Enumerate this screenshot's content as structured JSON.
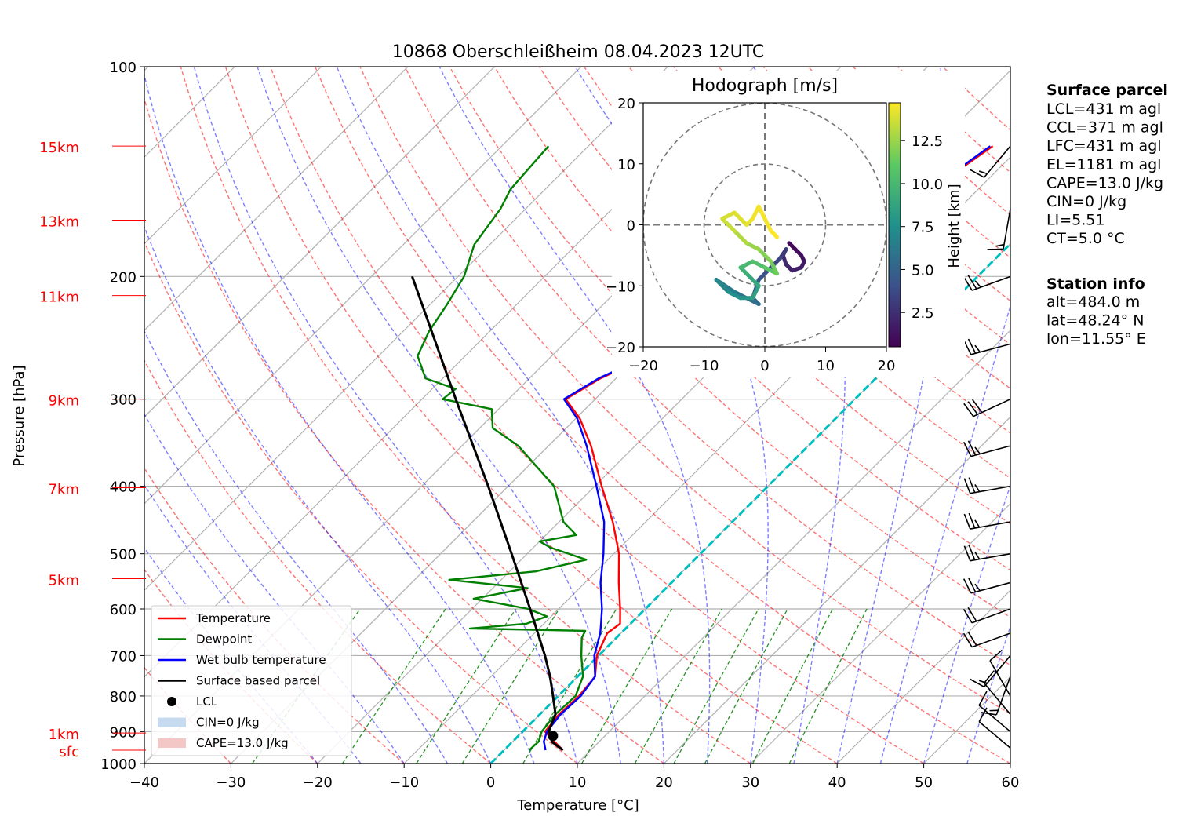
{
  "chart_data": {
    "type": "skew-t",
    "title": "10868 Oberschleißheim 08.04.2023 12UTC",
    "xlabel": "Temperature [°C]",
    "ylabel": "Pressure [hPa]",
    "xlim": [
      -40,
      60
    ],
    "ylim": [
      1000,
      100
    ],
    "log_pressure_axis": true,
    "grid": true,
    "x_ticks": [
      "−40",
      "−30",
      "−20",
      "−10",
      "0",
      "10",
      "20",
      "30",
      "40",
      "50",
      "60"
    ],
    "y_ticks": [
      "100",
      "200",
      "300",
      "400",
      "500",
      "600",
      "700",
      "800",
      "900",
      "1000"
    ],
    "height_labels": [
      {
        "text": "15km",
        "p": 130
      },
      {
        "text": "13km",
        "p": 166
      },
      {
        "text": "11km",
        "p": 213
      },
      {
        "text": "9km",
        "p": 300
      },
      {
        "text": "7km",
        "p": 402
      },
      {
        "text": "5km",
        "p": 543
      },
      {
        "text": "1km",
        "p": 904
      },
      {
        "text": "sfc",
        "p": 957
      }
    ],
    "legend": [
      {
        "label": "Temperature",
        "color": "#ff0000",
        "kind": "line"
      },
      {
        "label": "Dewpoint",
        "color": "#008000",
        "kind": "line"
      },
      {
        "label": "Wet bulb temperature",
        "color": "#0000ff",
        "kind": "line"
      },
      {
        "label": "Surface based parcel",
        "color": "#000000",
        "kind": "line"
      },
      {
        "label": "LCL",
        "color": "#000000",
        "kind": "dot"
      },
      {
        "label": "CIN=0 J/kg",
        "color": "#c6dbef",
        "kind": "patch"
      },
      {
        "label": "CAPE=13.0 J/kg",
        "color": "#f4c7c7",
        "kind": "patch"
      }
    ],
    "legend_placement": "lower-left",
    "series": [
      {
        "name": "Temperature",
        "color": "#ff0000",
        "points": [
          [
            957,
            6.8
          ],
          [
            930,
            4.8
          ],
          [
            900,
            2.6
          ],
          [
            850,
            2.2
          ],
          [
            800,
            2.4
          ],
          [
            750,
            2.0
          ],
          [
            700,
            -0.2
          ],
          [
            650,
            -1.6
          ],
          [
            630,
            -1.2
          ],
          [
            600,
            -2.9
          ],
          [
            550,
            -6.1
          ],
          [
            500,
            -9.4
          ],
          [
            450,
            -13.8
          ],
          [
            400,
            -19.2
          ],
          [
            350,
            -25.1
          ],
          [
            320,
            -29.5
          ],
          [
            300,
            -33.4
          ],
          [
            280,
            -31.8
          ],
          [
            260,
            -28.7
          ],
          [
            240,
            -25.0
          ],
          [
            220,
            -24.2
          ],
          [
            200,
            -22.0
          ],
          [
            180,
            -21.6
          ],
          [
            165,
            -19.5
          ],
          [
            150,
            -17.6
          ],
          [
            140,
            -14.4
          ],
          [
            130,
            -13.3
          ]
        ]
      },
      {
        "name": "Wet bulb temperature",
        "color": "#0000ff",
        "points": [
          [
            957,
            4.8
          ],
          [
            930,
            3.6
          ],
          [
            900,
            2.8
          ],
          [
            850,
            2.4
          ],
          [
            800,
            2.6
          ],
          [
            750,
            2.0
          ],
          [
            700,
            -0.5
          ],
          [
            650,
            -2.4
          ],
          [
            630,
            -3.4
          ],
          [
            600,
            -5.0
          ],
          [
            550,
            -8.2
          ],
          [
            500,
            -11.2
          ],
          [
            450,
            -14.8
          ],
          [
            400,
            -19.8
          ],
          [
            350,
            -25.6
          ],
          [
            320,
            -29.8
          ],
          [
            300,
            -33.6
          ],
          [
            280,
            -32.0
          ],
          [
            260,
            -28.9
          ],
          [
            240,
            -25.2
          ],
          [
            220,
            -24.4
          ],
          [
            200,
            -22.4
          ],
          [
            180,
            -21.8
          ],
          [
            165,
            -19.8
          ],
          [
            150,
            -17.9
          ],
          [
            140,
            -14.6
          ],
          [
            130,
            -13.6
          ]
        ]
      },
      {
        "name": "Dewpoint",
        "color": "#008000",
        "points": [
          [
            957,
            2.9
          ],
          [
            930,
            3.0
          ],
          [
            900,
            2.2
          ],
          [
            850,
            1.8
          ],
          [
            800,
            2.0
          ],
          [
            750,
            0.6
          ],
          [
            700,
            -2.0
          ],
          [
            660,
            -4.0
          ],
          [
            645,
            -4.4
          ],
          [
            640,
            -18.0
          ],
          [
            630,
            -12.0
          ],
          [
            615,
            -10.5
          ],
          [
            600,
            -13.5
          ],
          [
            580,
            -21.0
          ],
          [
            560,
            -16.0
          ],
          [
            545,
            -26.0
          ],
          [
            530,
            -17.0
          ],
          [
            510,
            -12.5
          ],
          [
            490,
            -18.0
          ],
          [
            480,
            -20.0
          ],
          [
            470,
            -16.5
          ],
          [
            450,
            -19.5
          ],
          [
            400,
            -24.7
          ],
          [
            350,
            -33.5
          ],
          [
            330,
            -38.5
          ],
          [
            310,
            -40.8
          ],
          [
            300,
            -47.6
          ],
          [
            290,
            -47.3
          ],
          [
            280,
            -52.0
          ],
          [
            260,
            -55.5
          ],
          [
            240,
            -57.0
          ],
          [
            220,
            -58.0
          ],
          [
            200,
            -59.3
          ],
          [
            180,
            -61.8
          ],
          [
            160,
            -62.9
          ],
          [
            150,
            -64.0
          ],
          [
            140,
            -64.3
          ],
          [
            130,
            -64.6
          ]
        ]
      },
      {
        "name": "Surface based parcel",
        "color": "#000000",
        "points": [
          [
            957,
            6.8
          ],
          [
            930,
            4.5
          ],
          [
            910,
            3.8
          ],
          [
            900,
            3.0
          ],
          [
            850,
            1.8
          ],
          [
            800,
            -0.6
          ],
          [
            750,
            -3.2
          ],
          [
            700,
            -6.2
          ],
          [
            600,
            -13.3
          ],
          [
            500,
            -21.8
          ],
          [
            400,
            -32.3
          ],
          [
            300,
            -46.1
          ],
          [
            200,
            -65.3
          ]
        ]
      }
    ],
    "lcl": {
      "p": 913,
      "t": 4.0
    },
    "freezing_level_line": {
      "color": "#00bfbf",
      "style": "dashed"
    },
    "wind_barbs": [
      {
        "p": 950,
        "speed_kt": 10,
        "dir": 310
      },
      {
        "p": 900,
        "speed_kt": 10,
        "dir": 310
      },
      {
        "p": 850,
        "speed_kt": 10,
        "dir": 320
      },
      {
        "p": 800,
        "speed_kt": 10,
        "dir": 330
      },
      {
        "p": 750,
        "speed_kt": 15,
        "dir": 200
      },
      {
        "p": 700,
        "speed_kt": 15,
        "dir": 220
      },
      {
        "p": 650,
        "speed_kt": 20,
        "dir": 250
      },
      {
        "p": 600,
        "speed_kt": 20,
        "dir": 250
      },
      {
        "p": 550,
        "speed_kt": 25,
        "dir": 255
      },
      {
        "p": 500,
        "speed_kt": 25,
        "dir": 260
      },
      {
        "p": 450,
        "speed_kt": 25,
        "dir": 260
      },
      {
        "p": 400,
        "speed_kt": 25,
        "dir": 260
      },
      {
        "p": 350,
        "speed_kt": 25,
        "dir": 255
      },
      {
        "p": 300,
        "speed_kt": 30,
        "dir": 245
      },
      {
        "p": 250,
        "speed_kt": 25,
        "dir": 255
      },
      {
        "p": 200,
        "speed_kt": 25,
        "dir": 250
      },
      {
        "p": 160,
        "speed_kt": 15,
        "dir": 190
      },
      {
        "p": 130,
        "speed_kt": 15,
        "dir": 220
      }
    ],
    "hodograph": {
      "title": "Hodograph [m/s]",
      "xlim": [
        -20,
        20
      ],
      "ylim": [
        -20,
        20
      ],
      "ticks": [
        "−20",
        "−10",
        "0",
        "10",
        "20"
      ],
      "rings": [
        10,
        20
      ],
      "colorbar_label": "Height [km]",
      "colorbar_ticks": [
        "2.5",
        "5.0",
        "7.5",
        "10.0",
        "12.5"
      ],
      "colorbar_range": [
        0.5,
        14.7
      ],
      "points": [
        [
          4,
          -3,
          0.5
        ],
        [
          5,
          -4,
          0.8
        ],
        [
          6,
          -5,
          1.0
        ],
        [
          6.5,
          -6,
          1.2
        ],
        [
          6,
          -7,
          1.5
        ],
        [
          4.5,
          -7.5,
          1.8
        ],
        [
          3.5,
          -6.5,
          2.0
        ],
        [
          3,
          -5,
          2.3
        ],
        [
          3.5,
          -4,
          2.6
        ],
        [
          2.5,
          -5.5,
          3.0
        ],
        [
          1,
          -7,
          3.5
        ],
        [
          -1,
          -9,
          4.0
        ],
        [
          -2,
          -12,
          4.5
        ],
        [
          -1,
          -13,
          5.0
        ],
        [
          -3,
          -12,
          5.5
        ],
        [
          -5,
          -11,
          6.0
        ],
        [
          -8,
          -9,
          6.5
        ],
        [
          -6,
          -11,
          7.0
        ],
        [
          -4,
          -12,
          7.5
        ],
        [
          -2,
          -12,
          8.0
        ],
        [
          -1,
          -10,
          8.5
        ],
        [
          -3,
          -8,
          9.0
        ],
        [
          -4,
          -7,
          9.5
        ],
        [
          -2,
          -6,
          10.0
        ],
        [
          0,
          -7,
          10.5
        ],
        [
          2,
          -8,
          11.0
        ],
        [
          1,
          -6,
          11.5
        ],
        [
          -1,
          -4,
          12.0
        ],
        [
          -3,
          -3,
          12.5
        ],
        [
          -5,
          -1,
          13.0
        ],
        [
          -7,
          1,
          13.5
        ],
        [
          -5,
          2,
          13.8
        ],
        [
          -3,
          0,
          14.0
        ],
        [
          -2,
          1,
          14.2
        ],
        [
          -1,
          3,
          14.4
        ],
        [
          1,
          -1,
          14.5
        ],
        [
          2,
          -2,
          14.7
        ]
      ]
    }
  },
  "info_panel": {
    "surface_parcel": {
      "heading": "Surface parcel",
      "lines": [
        "LCL=431 m agl",
        "CCL=371 m agl",
        "LFC=431 m agl",
        "EL=1181 m agl",
        "CAPE=13.0 J/kg",
        "CIN=0 J/kg",
        "LI=5.51",
        "CT=5.0 °C"
      ]
    },
    "station": {
      "heading": "Station info",
      "lines": [
        "alt=484.0 m",
        "lat=48.24° N",
        "lon=11.55° E"
      ]
    }
  }
}
